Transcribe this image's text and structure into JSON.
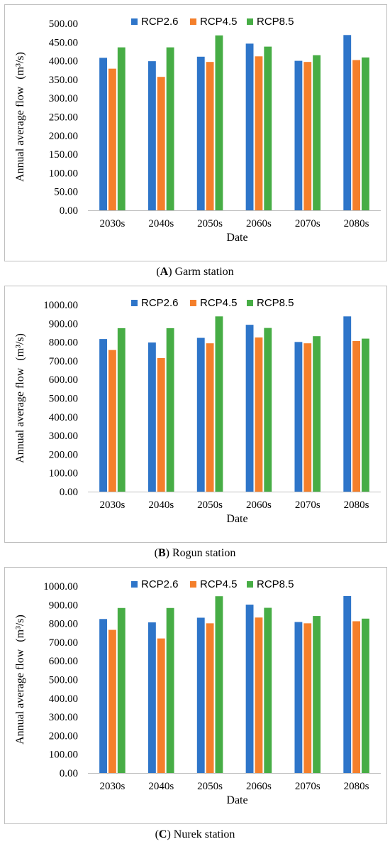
{
  "colors": {
    "RCP2.6": "#2e75c9",
    "RCP4.5": "#f47f2b",
    "RCP8.5": "#47ad45"
  },
  "chart_data": [
    {
      "type": "bar",
      "title": "",
      "caption_letter": "A",
      "caption_text": "Garm station",
      "xlabel": "Date",
      "ylabel_text": "Annual average flow",
      "ylabel_unit": "(m³/s)",
      "ylim": [
        0,
        500
      ],
      "yticks": [
        "0.00",
        "50.00",
        "100.00",
        "150.00",
        "200.00",
        "250.00",
        "300.00",
        "350.00",
        "400.00",
        "450.00",
        "500.00"
      ],
      "categories": [
        "2030s",
        "2040s",
        "2050s",
        "2060s",
        "2070s",
        "2080s"
      ],
      "legend_position": "top-center",
      "grid": false,
      "series": [
        {
          "name": "RCP2.6",
          "values": [
            408,
            399,
            411,
            446,
            400,
            469
          ]
        },
        {
          "name": "RCP4.5",
          "values": [
            379,
            357,
            397,
            412,
            397,
            402
          ]
        },
        {
          "name": "RCP8.5",
          "values": [
            436,
            436,
            468,
            438,
            415,
            409
          ]
        }
      ]
    },
    {
      "type": "bar",
      "title": "",
      "caption_letter": "B",
      "caption_text": "Rogun station",
      "xlabel": "Date",
      "ylabel_text": "Annual average flow",
      "ylabel_unit": "(m³/s)",
      "ylim": [
        0,
        1000
      ],
      "yticks": [
        "0.00",
        "100.00",
        "200.00",
        "300.00",
        "400.00",
        "500.00",
        "600.00",
        "700.00",
        "800.00",
        "900.00",
        "1000.00"
      ],
      "categories": [
        "2030s",
        "2040s",
        "2050s",
        "2060s",
        "2070s",
        "2080s"
      ],
      "legend_position": "top-center",
      "grid": false,
      "series": [
        {
          "name": "RCP2.6",
          "values": [
            817,
            798,
            823,
            893,
            801,
            938
          ]
        },
        {
          "name": "RCP4.5",
          "values": [
            758,
            715,
            794,
            825,
            794,
            806
          ]
        },
        {
          "name": "RCP8.5",
          "values": [
            875,
            875,
            938,
            876,
            832,
            819
          ]
        }
      ]
    },
    {
      "type": "bar",
      "title": "",
      "caption_letter": "C",
      "caption_text": "Nurek station",
      "xlabel": "Date",
      "ylabel_text": "Annual average flow",
      "ylabel_unit": "(m³/s)",
      "ylim": [
        0,
        1000
      ],
      "yticks": [
        "0.00",
        "100.00",
        "200.00",
        "300.00",
        "400.00",
        "500.00",
        "600.00",
        "700.00",
        "800.00",
        "900.00",
        "1000.00"
      ],
      "categories": [
        "2030s",
        "2040s",
        "2050s",
        "2060s",
        "2070s",
        "2080s"
      ],
      "legend_position": "top-center",
      "grid": false,
      "series": [
        {
          "name": "RCP2.6",
          "values": [
            824,
            806,
            831,
            901,
            808,
            947
          ]
        },
        {
          "name": "RCP4.5",
          "values": [
            766,
            720,
            801,
            832,
            801,
            812
          ]
        },
        {
          "name": "RCP8.5",
          "values": [
            883,
            883,
            946,
            884,
            840,
            826
          ]
        }
      ]
    }
  ]
}
